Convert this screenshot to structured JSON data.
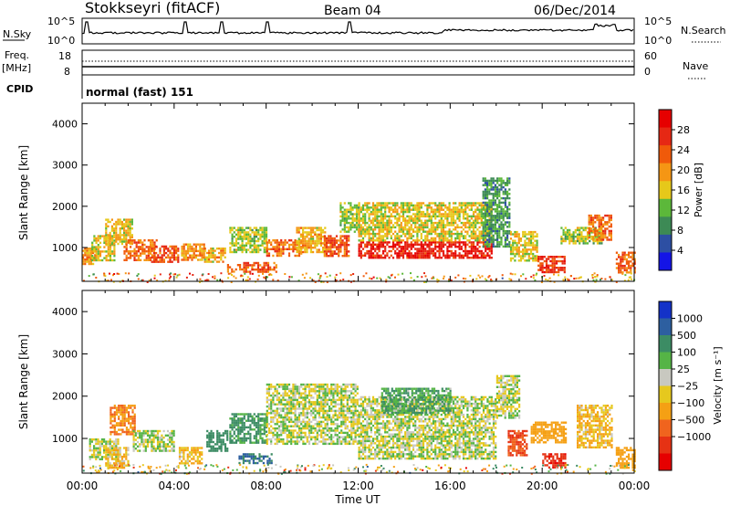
{
  "header": {
    "station": "Stokkseyri (fitACF)",
    "beam": "Beam 04",
    "date": "06/Dec/2014"
  },
  "noise_panel": {
    "left_label": "N.Sky",
    "y_ticks": [
      "10^5",
      "10^0"
    ],
    "right_label": "N.Search"
  },
  "freq_panel": {
    "left_label": "Freq.",
    "left_unit": "[MHz]",
    "left_ticks": [
      "18",
      "8"
    ],
    "right_ticks": [
      "60",
      "0"
    ],
    "right_label": "Nave"
  },
  "cpid": {
    "label": "CPID",
    "mode": "normal (fast) 151"
  },
  "axes": {
    "y_label": "Slant Range [km]",
    "x_label": "Time UT",
    "x_ticks": [
      "00:00",
      "04:00",
      "08:00",
      "12:00",
      "16:00",
      "20:00",
      "00:00"
    ],
    "y_ticks": [
      "1000",
      "2000",
      "3000",
      "4000"
    ]
  },
  "power_colorbar": {
    "label": "Power [dB]",
    "ticks": [
      "4",
      "8",
      "12",
      "16",
      "20",
      "24",
      "28"
    ],
    "colors": [
      "#1414e6",
      "#2d4fa3",
      "#3d8a55",
      "#5cb83a",
      "#e6c81a",
      "#f59614",
      "#f05a0a",
      "#e62814",
      "#e60000"
    ]
  },
  "velocity_colorbar": {
    "label": "Velocity [m s⁻¹]",
    "ticks": [
      "1000",
      "500",
      "100",
      "25",
      "−25",
      "−100",
      "−500",
      "−1000"
    ],
    "colors": [
      "#1432c8",
      "#2d5fa0",
      "#3c8c64",
      "#55b446",
      "#c8c8c0",
      "#e6c81e",
      "#f5a014",
      "#f0641e",
      "#e63214",
      "#e60000"
    ]
  },
  "chart_data": [
    {
      "type": "heatmap",
      "title": "Power",
      "x": [
        0,
        24
      ],
      "xlabel": "Time UT",
      "ylabel": "Slant Range [km]",
      "ylim": [
        180,
        4500
      ],
      "colorbar": {
        "label": "Power [dB]",
        "range": [
          0,
          32
        ]
      },
      "regions": [
        {
          "t": [
            0.0,
            0.6
          ],
          "r": [
            600,
            1000
          ],
          "v": 20
        },
        {
          "t": [
            0.4,
            1.4
          ],
          "r": [
            700,
            1300
          ],
          "v": 16
        },
        {
          "t": [
            1.0,
            2.2
          ],
          "r": [
            1100,
            1700
          ],
          "v": 17
        },
        {
          "t": [
            1.8,
            3.2
          ],
          "r": [
            700,
            1200
          ],
          "v": 22
        },
        {
          "t": [
            3.0,
            4.2
          ],
          "r": [
            650,
            1050
          ],
          "v": 24
        },
        {
          "t": [
            4.3,
            5.3
          ],
          "r": [
            700,
            1100
          ],
          "v": 20
        },
        {
          "t": [
            5.3,
            6.2
          ],
          "r": [
            650,
            1000
          ],
          "v": 18
        },
        {
          "t": [
            6.3,
            7.0
          ],
          "r": [
            400,
            600
          ],
          "v": 22
        },
        {
          "t": [
            6.4,
            8.0
          ],
          "r": [
            900,
            1500
          ],
          "v": 14
        },
        {
          "t": [
            7.0,
            8.4
          ],
          "r": [
            400,
            650
          ],
          "v": 24
        },
        {
          "t": [
            8.0,
            9.5
          ],
          "r": [
            800,
            1200
          ],
          "v": 22
        },
        {
          "t": [
            9.3,
            10.6
          ],
          "r": [
            900,
            1500
          ],
          "v": 18
        },
        {
          "t": [
            10.5,
            11.6
          ],
          "r": [
            800,
            1300
          ],
          "v": 24
        },
        {
          "t": [
            11.2,
            12.0
          ],
          "r": [
            1400,
            2100
          ],
          "v": 14
        },
        {
          "t": [
            12.0,
            17.8
          ],
          "r": [
            750,
            1150
          ],
          "v": 28
        },
        {
          "t": [
            12.0,
            17.8
          ],
          "r": [
            1150,
            2100
          ],
          "v": 16
        },
        {
          "t": [
            17.4,
            18.6
          ],
          "r": [
            1000,
            2700
          ],
          "v": 10
        },
        {
          "t": [
            18.6,
            19.8
          ],
          "r": [
            700,
            1400
          ],
          "v": 16
        },
        {
          "t": [
            19.8,
            21.0
          ],
          "r": [
            400,
            800
          ],
          "v": 26
        },
        {
          "t": [
            20.8,
            22.6
          ],
          "r": [
            1100,
            1500
          ],
          "v": 14
        },
        {
          "t": [
            22.0,
            23.0
          ],
          "r": [
            1200,
            1800
          ],
          "v": 22
        },
        {
          "t": [
            23.2,
            24.0
          ],
          "r": [
            400,
            900
          ],
          "v": 24
        }
      ]
    },
    {
      "type": "heatmap",
      "title": "Velocity",
      "x": [
        0,
        24
      ],
      "xlabel": "Time UT",
      "ylabel": "Slant Range [km]",
      "ylim": [
        180,
        4500
      ],
      "colorbar": {
        "label": "Velocity [m s^-1]",
        "range": [
          -1000,
          1000
        ]
      },
      "regions": [
        {
          "t": [
            0.3,
            1.6
          ],
          "r": [
            500,
            1000
          ],
          "v": 0
        },
        {
          "t": [
            1.2,
            2.3
          ],
          "r": [
            1100,
            1800
          ],
          "v": -300
        },
        {
          "t": [
            1.0,
            2.0
          ],
          "r": [
            300,
            800
          ],
          "v": -100
        },
        {
          "t": [
            2.2,
            4.0
          ],
          "r": [
            700,
            1200
          ],
          "v": 0
        },
        {
          "t": [
            4.2,
            5.2
          ],
          "r": [
            400,
            800
          ],
          "v": -100
        },
        {
          "t": [
            5.4,
            6.3
          ],
          "r": [
            700,
            1200
          ],
          "v": 200
        },
        {
          "t": [
            6.4,
            8.0
          ],
          "r": [
            900,
            1600
          ],
          "v": 150
        },
        {
          "t": [
            6.8,
            8.2
          ],
          "r": [
            400,
            650
          ],
          "v": 300
        },
        {
          "t": [
            8.0,
            12.0
          ],
          "r": [
            900,
            2300
          ],
          "v": 0
        },
        {
          "t": [
            12.0,
            18.0
          ],
          "r": [
            500,
            2000
          ],
          "v": 0
        },
        {
          "t": [
            13.0,
            16.0
          ],
          "r": [
            1600,
            2200
          ],
          "v": 100
        },
        {
          "t": [
            18.0,
            19.0
          ],
          "r": [
            1500,
            2500
          ],
          "v": 0
        },
        {
          "t": [
            18.5,
            19.3
          ],
          "r": [
            600,
            1200
          ],
          "v": -500
        },
        {
          "t": [
            20.0,
            21.0
          ],
          "r": [
            300,
            650
          ],
          "v": -700
        },
        {
          "t": [
            19.5,
            21.0
          ],
          "r": [
            900,
            1400
          ],
          "v": -200
        },
        {
          "t": [
            21.5,
            23.0
          ],
          "r": [
            800,
            1800
          ],
          "v": -100
        },
        {
          "t": [
            23.2,
            24.0
          ],
          "r": [
            300,
            800
          ],
          "v": -200
        }
      ]
    }
  ]
}
